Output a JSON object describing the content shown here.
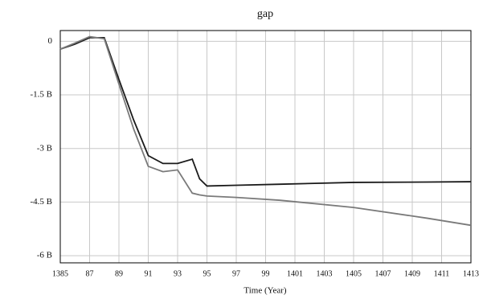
{
  "chart_data": {
    "type": "line",
    "title": "gap",
    "xlabel": "Time (Year)",
    "x": [
      1385,
      1386,
      1387,
      1388,
      1389,
      1390,
      1391,
      1392,
      1393,
      1394,
      1394.5,
      1395,
      1397,
      1400,
      1405,
      1410,
      1413
    ],
    "series": [
      {
        "color": "#1a1a1a",
        "values": [
          -0.22,
          -0.08,
          0.1,
          0.1,
          -1.07,
          -2.2,
          -3.2,
          -3.42,
          -3.42,
          -3.3,
          -3.85,
          -4.05,
          -4.03,
          -4.0,
          -3.95,
          -3.94,
          -3.93
        ]
      },
      {
        "color": "#7a7a7a",
        "values": [
          -0.22,
          -0.05,
          0.13,
          0.07,
          -1.2,
          -2.45,
          -3.5,
          -3.65,
          -3.6,
          -4.25,
          -4.3,
          -4.33,
          -4.37,
          -4.45,
          -4.65,
          -4.95,
          -5.15
        ]
      }
    ],
    "xlim": [
      1385,
      1413
    ],
    "xticks": [
      1385,
      {
        "value": 1387,
        "label": "87"
      },
      {
        "value": 1389,
        "label": "89"
      },
      {
        "value": 1391,
        "label": "91"
      },
      {
        "value": 1393,
        "label": "93"
      },
      {
        "value": 1395,
        "label": "95"
      },
      {
        "value": 1397,
        "label": "97"
      },
      {
        "value": 1399,
        "label": "99"
      },
      1401,
      1403,
      1405,
      1407,
      1409,
      1411,
      1413
    ],
    "ylim": [
      -6.2,
      0.3
    ],
    "yticks": [
      0,
      {
        "value": -1.5,
        "label": "-1.5 B"
      },
      {
        "value": -3,
        "label": "-3 B"
      },
      {
        "value": -4.5,
        "label": "-4.5 B"
      },
      {
        "value": -6,
        "label": "-6 B"
      }
    ],
    "grid": true
  }
}
